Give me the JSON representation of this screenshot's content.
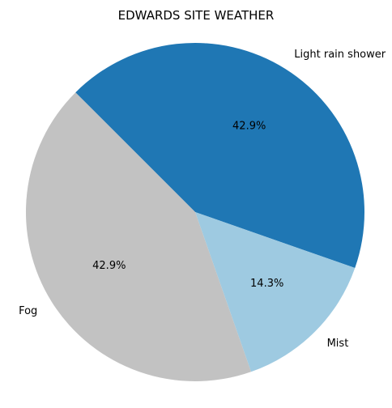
{
  "chart_data": {
    "type": "pie",
    "title": "EDWARDS SITE WEATHER",
    "slices": [
      {
        "label": "Light rain shower",
        "value": 42.9,
        "pct_label": "42.9%",
        "color": "#1f77b4"
      },
      {
        "label": "Mist",
        "value": 14.3,
        "pct_label": "14.3%",
        "color": "#9ecae1"
      },
      {
        "label": "Fog",
        "value": 42.9,
        "pct_label": "42.9%",
        "color": "#c2c2c2"
      }
    ]
  }
}
